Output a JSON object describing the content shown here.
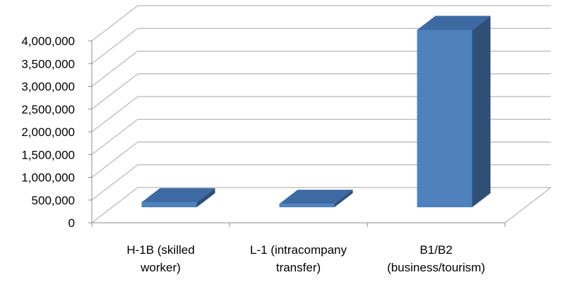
{
  "chart_data": {
    "type": "bar",
    "style": "3d-column",
    "categories": [
      [
        "H-1B (skilled",
        "worker)"
      ],
      [
        "L-1 (intracompany",
        "transfer)"
      ],
      [
        "B1/B2",
        "(business/tourism)"
      ]
    ],
    "values": [
      110000,
      75000,
      3900000
    ],
    "y_tick_labels": [
      "0",
      "500,000",
      "1,000,000",
      "1,500,000",
      "2,000,000",
      "2,500,000",
      "3,000,000",
      "3,500,000",
      "4,000,000"
    ],
    "ylim": [
      0,
      4000000
    ],
    "grid": true,
    "legend": "none",
    "title": "",
    "xlabel": "",
    "ylabel": "",
    "colors": {
      "bar_front": "#4f81bd",
      "bar_top": "#3d6aa3",
      "bar_side": "#2f4f77",
      "grid": "#a6a6a6"
    }
  }
}
